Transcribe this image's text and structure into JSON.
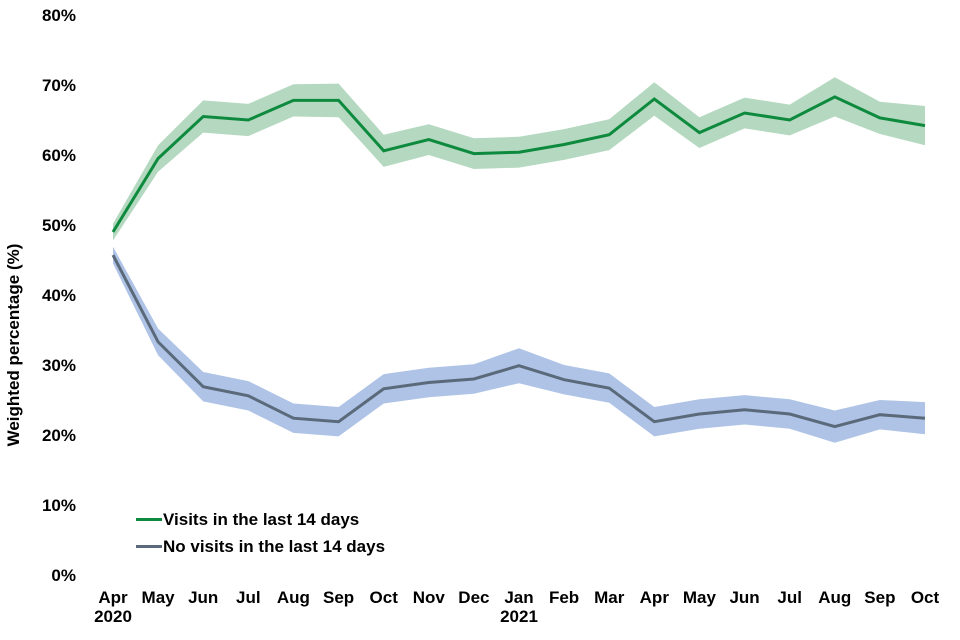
{
  "figure": {
    "background_color": "#FFFFFF",
    "text_color": "#000000"
  },
  "y_axis": {
    "title": "Weighted percentage (%)",
    "tick_labels": [
      "0%",
      "10%",
      "20%",
      "30%",
      "40%",
      "50%",
      "60%",
      "70%",
      "80%"
    ],
    "min": 0,
    "max": 80,
    "step": 10
  },
  "x_axis": {
    "tick_labels": [
      "Apr",
      "May",
      "Jun",
      "Jul",
      "Aug",
      "Sep",
      "Oct",
      "Nov",
      "Dec",
      "Jan",
      "Feb",
      "Mar",
      "Apr",
      "May",
      "Jun",
      "Jul",
      "Aug",
      "Sep",
      "Oct"
    ],
    "year_labels": [
      {
        "index": 0,
        "label": "2020"
      },
      {
        "index": 9,
        "label": "2021"
      }
    ]
  },
  "legend": {
    "items": [
      {
        "label": "Visits in the last 14 days",
        "color": "#0E8A3E"
      },
      {
        "label": "No visits in the last 14 days",
        "color": "#5A6A7A"
      }
    ]
  },
  "chart_data": {
    "type": "line",
    "title": "",
    "xlabel": "",
    "ylabel": "Weighted percentage (%)",
    "ylim": [
      0,
      80
    ],
    "ytick_step": 10,
    "grid": false,
    "axis_lines": false,
    "legend_position": "inside-lower-left",
    "has_confidence_bands": true,
    "categories": [
      "Apr 2020",
      "May 2020",
      "Jun 2020",
      "Jul 2020",
      "Aug 2020",
      "Sep 2020",
      "Oct 2020",
      "Nov 2020",
      "Dec 2020",
      "Jan 2021",
      "Feb 2021",
      "Mar 2021",
      "Apr 2021",
      "May 2021",
      "Jun 2021",
      "Jul 2021",
      "Aug 2021",
      "Sep 2021",
      "Oct 2021"
    ],
    "series": [
      {
        "name": "Visits in the last 14 days",
        "color": "#0E8A3E",
        "band_color": "#B5D9C0",
        "values": [
          49.0,
          59.5,
          65.5,
          65.0,
          67.8,
          67.8,
          60.6,
          62.2,
          60.2,
          60.4,
          61.5,
          62.9,
          68.0,
          63.2,
          66.0,
          65.0,
          68.3,
          65.3,
          64.2
        ],
        "ci_half_width": [
          1.2,
          1.9,
          2.3,
          2.3,
          2.3,
          2.4,
          2.3,
          2.2,
          2.2,
          2.2,
          2.2,
          2.2,
          2.4,
          2.2,
          2.2,
          2.2,
          2.8,
          2.3,
          2.8
        ]
      },
      {
        "name": "No visits in the last 14 days",
        "color": "#5A6A7A",
        "band_color": "#AEC3E6",
        "values": [
          45.7,
          33.3,
          26.9,
          25.6,
          22.4,
          21.9,
          26.6,
          27.5,
          28.0,
          29.9,
          27.9,
          26.7,
          21.9,
          23.0,
          23.6,
          23.0,
          21.2,
          22.9,
          22.4
        ],
        "ci_half_width": [
          1.2,
          1.9,
          2.1,
          2.1,
          2.1,
          2.1,
          2.1,
          2.1,
          2.1,
          2.5,
          2.1,
          2.1,
          2.1,
          2.1,
          2.1,
          2.1,
          2.3,
          2.1,
          2.3
        ]
      }
    ]
  }
}
